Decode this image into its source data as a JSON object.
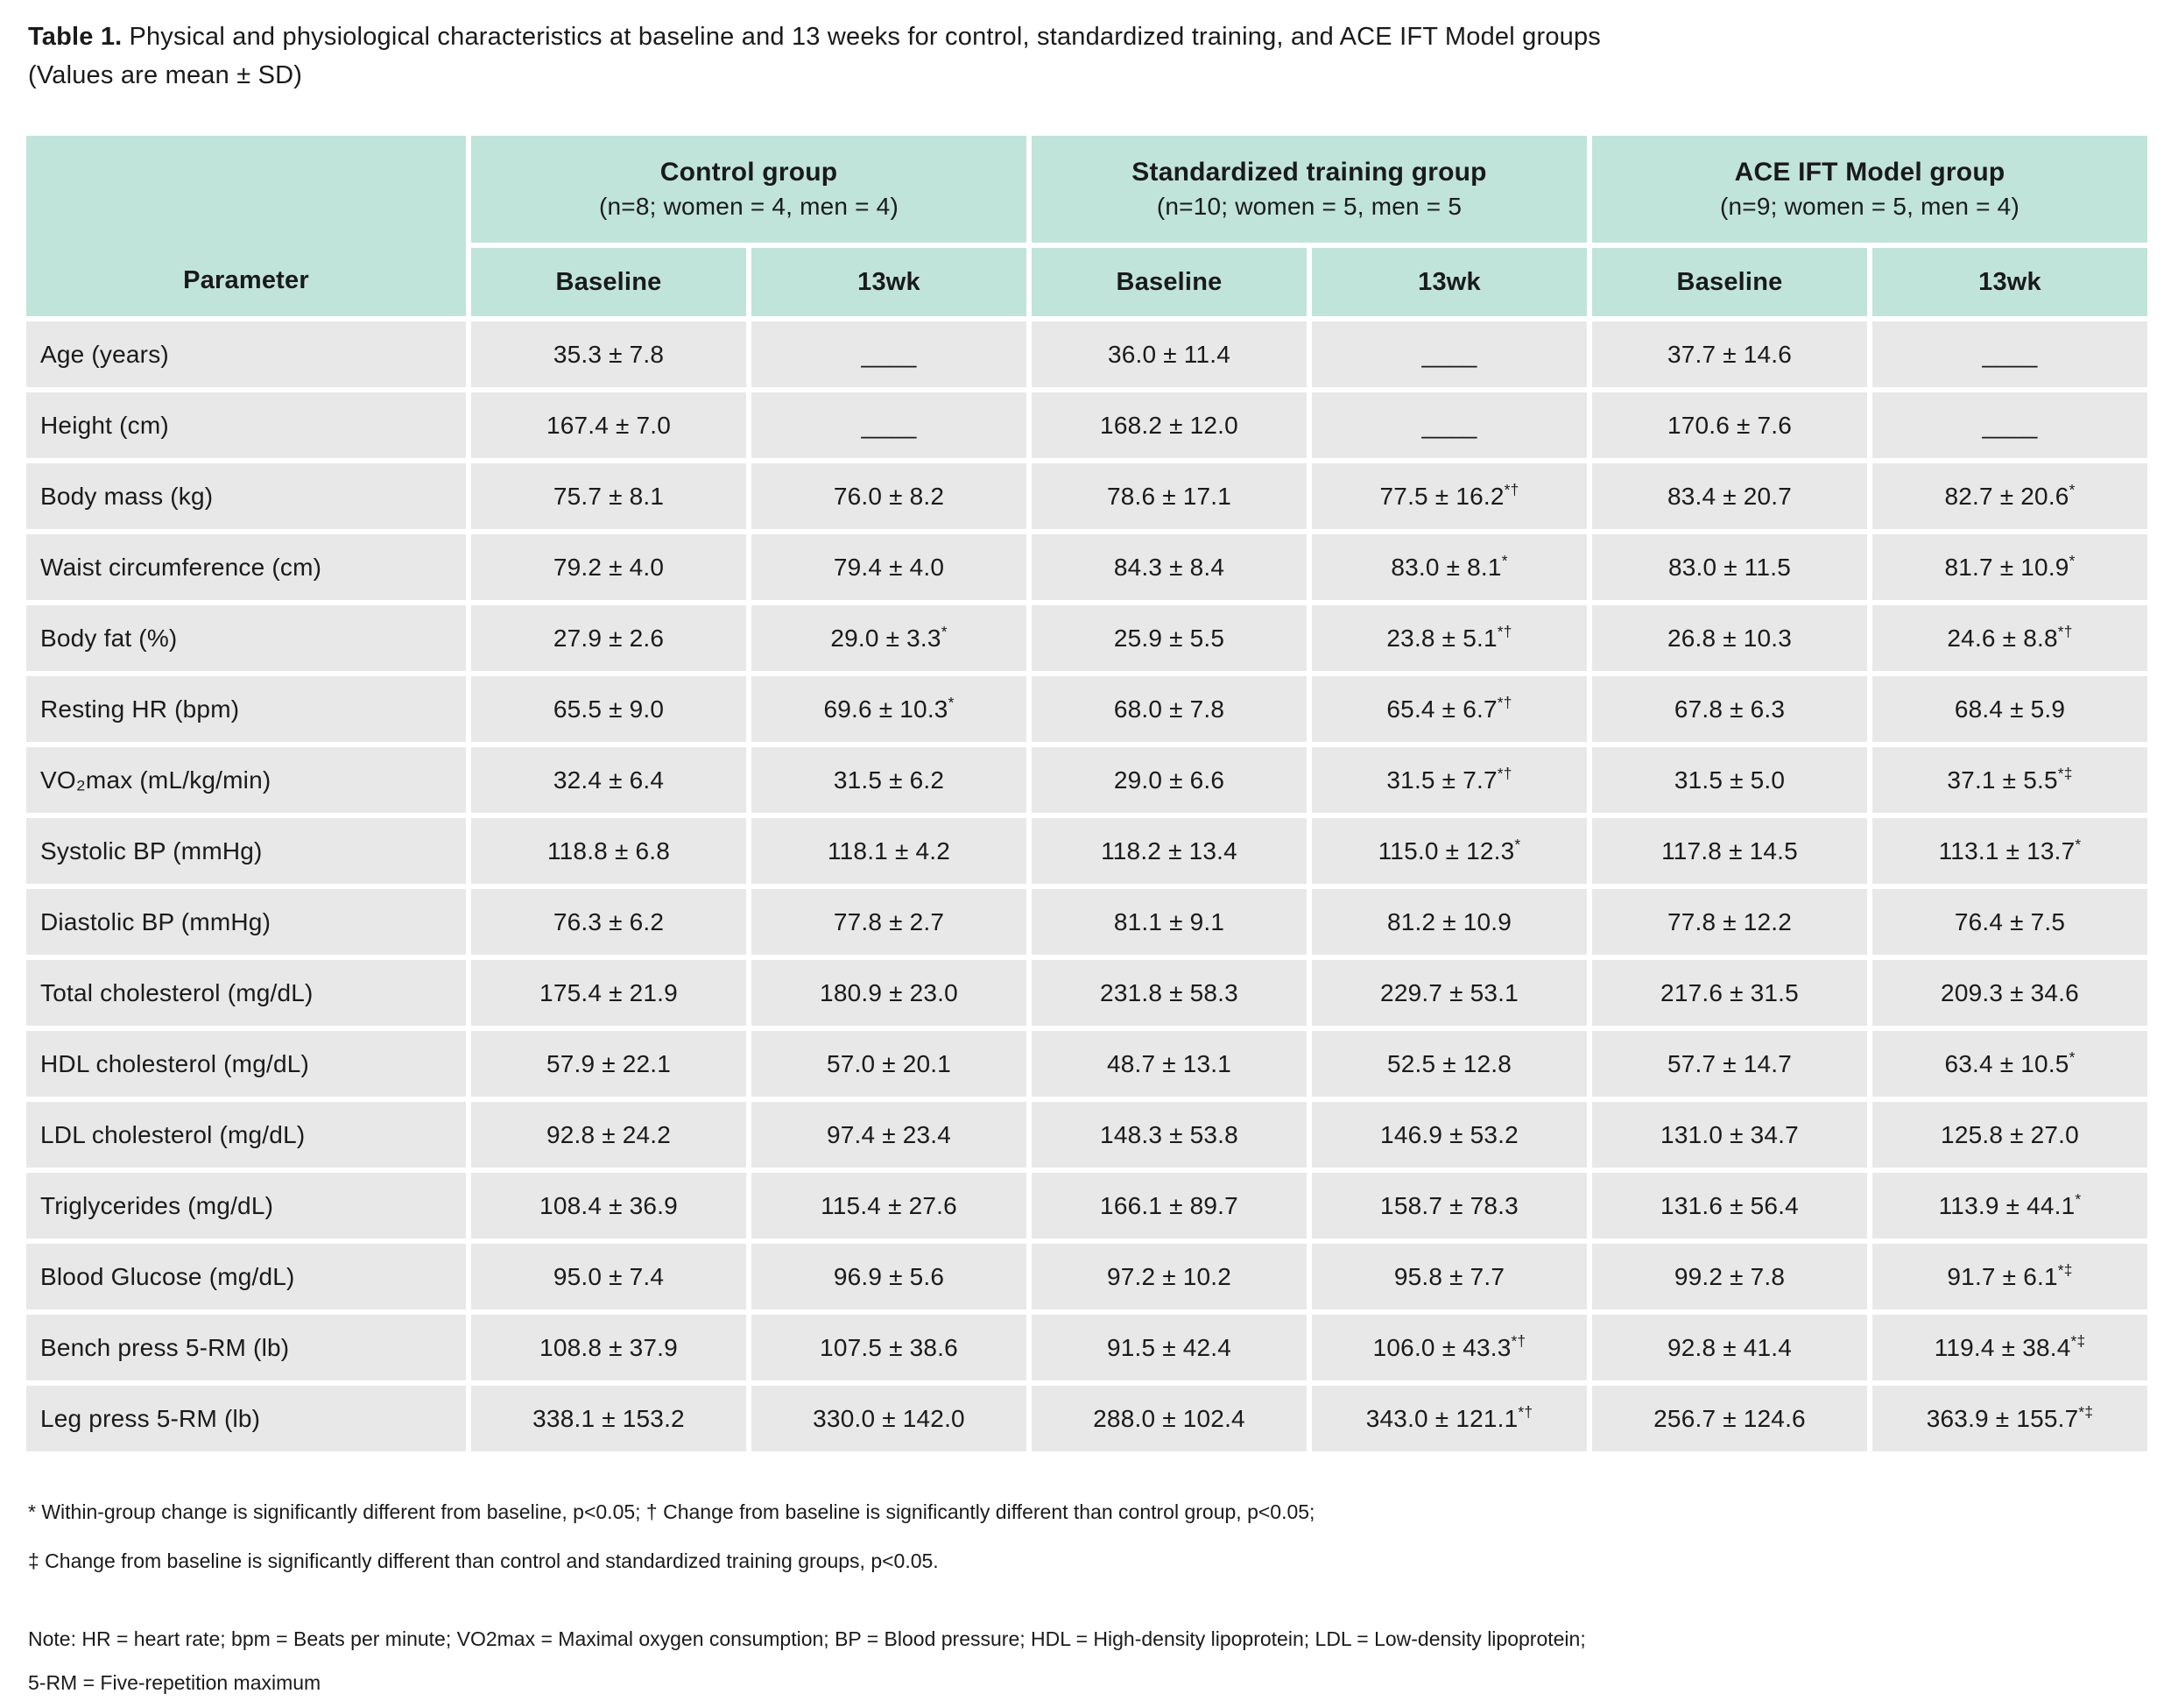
{
  "title": {
    "label": "Table 1.",
    "text": "Physical and physiological characteristics at baseline and 13 weeks for control, standardized training, and ACE IFT Model groups",
    "subtitle": "(Values are mean ± SD)"
  },
  "table": {
    "parameter_header": "Parameter",
    "groups": [
      {
        "name": "Control group",
        "subtext": "(n=8; women = 4, men = 4)"
      },
      {
        "name": "Standardized training group",
        "subtext": "(n=10; women = 5, men = 5"
      },
      {
        "name": "ACE IFT Model group",
        "subtext": "(n=9; women = 5, men = 4)"
      }
    ],
    "sub_headers": [
      "Baseline",
      "13wk",
      "Baseline",
      "13wk",
      "Baseline",
      "13wk"
    ],
    "rows": [
      {
        "parameter": "Age (years)",
        "values": [
          "35.3 ± 7.8",
          "____",
          "36.0 ± 11.4",
          "____",
          "37.7 ± 14.6",
          "____"
        ]
      },
      {
        "parameter": "Height (cm)",
        "values": [
          "167.4 ± 7.0",
          "____",
          "168.2 ± 12.0",
          "____",
          "170.6 ± 7.6",
          "____"
        ]
      },
      {
        "parameter": "Body mass (kg)",
        "values": [
          "75.7 ± 8.1",
          "76.0 ± 8.2",
          "78.6 ± 17.1",
          "77.5 ± 16.2*†",
          "83.4 ± 20.7",
          "82.7 ± 20.6*"
        ]
      },
      {
        "parameter": "Waist circumference (cm)",
        "values": [
          "79.2 ± 4.0",
          "79.4 ± 4.0",
          "84.3 ± 8.4",
          "83.0 ± 8.1*",
          "83.0 ± 11.5",
          "81.7 ± 10.9*"
        ]
      },
      {
        "parameter": "Body fat (%)",
        "values": [
          "27.9 ± 2.6",
          "29.0 ± 3.3*",
          "25.9 ± 5.5",
          "23.8 ± 5.1*†",
          "26.8 ± 10.3",
          "24.6 ± 8.8*†"
        ]
      },
      {
        "parameter": "Resting HR (bpm)",
        "values": [
          "65.5 ± 9.0",
          "69.6 ± 10.3*",
          "68.0 ± 7.8",
          "65.4 ± 6.7*†",
          "67.8 ± 6.3",
          "68.4 ± 5.9"
        ]
      },
      {
        "parameter": "VO₂max (mL/kg/min)",
        "values": [
          "32.4 ± 6.4",
          "31.5 ± 6.2",
          "29.0 ± 6.6",
          "31.5 ± 7.7*†",
          "31.5 ± 5.0",
          "37.1 ± 5.5*‡"
        ]
      },
      {
        "parameter": "Systolic BP (mmHg)",
        "values": [
          "118.8 ± 6.8",
          "118.1 ± 4.2",
          "118.2 ± 13.4",
          "115.0 ± 12.3*",
          "117.8 ± 14.5",
          "113.1 ± 13.7*"
        ]
      },
      {
        "parameter": "Diastolic BP (mmHg)",
        "values": [
          "76.3 ± 6.2",
          "77.8 ± 2.7",
          "81.1 ± 9.1",
          "81.2 ± 10.9",
          "77.8 ± 12.2",
          "76.4 ± 7.5"
        ]
      },
      {
        "parameter": "Total cholesterol (mg/dL)",
        "values": [
          "175.4 ± 21.9",
          "180.9 ± 23.0",
          "231.8 ± 58.3",
          "229.7 ± 53.1",
          "217.6 ± 31.5",
          "209.3 ± 34.6"
        ]
      },
      {
        "parameter": "HDL cholesterol (mg/dL)",
        "values": [
          "57.9 ± 22.1",
          "57.0 ± 20.1",
          "48.7 ± 13.1",
          "52.5 ± 12.8",
          "57.7 ± 14.7",
          "63.4 ± 10.5*"
        ]
      },
      {
        "parameter": "LDL cholesterol (mg/dL)",
        "values": [
          "92.8 ± 24.2",
          "97.4 ± 23.4",
          "148.3 ± 53.8",
          "146.9 ± 53.2",
          "131.0 ± 34.7",
          "125.8 ± 27.0"
        ]
      },
      {
        "parameter": "Triglycerides (mg/dL)",
        "values": [
          "108.4 ± 36.9",
          "115.4 ± 27.6",
          "166.1 ± 89.7",
          "158.7 ± 78.3",
          "131.6 ± 56.4",
          "113.9 ± 44.1*"
        ]
      },
      {
        "parameter": "Blood Glucose (mg/dL)",
        "values": [
          "95.0 ± 7.4",
          "96.9 ± 5.6",
          "97.2 ± 10.2",
          "95.8 ± 7.7",
          "99.2 ± 7.8",
          "91.7 ± 6.1*‡"
        ]
      },
      {
        "parameter": "Bench press 5-RM (lb)",
        "values": [
          "108.8 ± 37.9",
          "107.5 ± 38.6",
          "91.5 ± 42.4",
          "106.0 ± 43.3*†",
          "92.8 ± 41.4",
          "119.4 ± 38.4*‡"
        ]
      },
      {
        "parameter": "Leg press 5-RM (lb)",
        "values": [
          "338.1 ± 153.2",
          "330.0 ± 142.0",
          "288.0 ± 102.4",
          "343.0 ± 121.1*†",
          "256.7 ± 124.6",
          "363.9 ± 155.7*‡"
        ]
      }
    ]
  },
  "footnotes": {
    "line1": "* Within-group change is significantly different from baseline, p<0.05; † Change from baseline is significantly different than control group, p<0.05;",
    "line2": "‡ Change from baseline is significantly different than control and standardized training groups, p<0.05.",
    "note_line1": "Note: HR = heart rate; bpm = Beats per minute; VO2max = Maximal oxygen consumption; BP = Blood pressure; HDL = High-density lipoprotein; LDL = Low-density lipoprotein;",
    "note_line2": "5-RM = Five-repetition maximum"
  },
  "colors": {
    "header_bg": "#c0e4da",
    "row_bg": "#e8e8e8",
    "text": "#1a1a1a",
    "page_bg": "#ffffff"
  }
}
